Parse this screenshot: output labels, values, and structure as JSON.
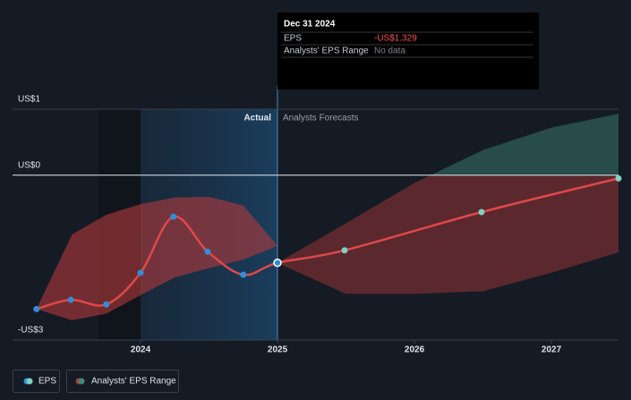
{
  "chart_data": {
    "type": "line",
    "series": [
      {
        "name": "EPS",
        "color": "#e0484a",
        "marker_color": "#2f8fd8",
        "forecast_marker_color": "#7fd3c0",
        "x": [
          2023.24,
          2023.49,
          2023.75,
          2024.0,
          2024.24,
          2024.49,
          2024.75,
          2025.0,
          2025.49,
          2026.49,
          2027.49
        ],
        "values": [
          -2.03,
          -1.89,
          -1.96,
          -1.48,
          -0.63,
          -1.16,
          -1.51,
          -1.329,
          -1.14,
          -0.56,
          -0.05
        ]
      }
    ],
    "forecast_start": 2025.0,
    "range_name": "Analysts' EPS Range",
    "range_colors": {
      "negative": "#b23a3c",
      "positive": "#3e8a7c"
    },
    "ranges": [
      {
        "x": [
          2023.24,
          2023.5,
          2023.75,
          2024.0,
          2024.25,
          2024.5,
          2024.75,
          2025.0
        ],
        "high": [
          -2.03,
          -0.9,
          -0.6,
          -0.44,
          -0.34,
          -0.33,
          -0.46,
          -1.07
        ],
        "low": [
          -2.03,
          -2.2,
          -2.1,
          -1.82,
          -1.55,
          -1.41,
          -1.28,
          -1.07
        ]
      },
      {
        "x": [
          2025.0,
          2025.5,
          2026.0,
          2026.5,
          2027.0,
          2027.49
        ],
        "high": [
          -1.33,
          -0.73,
          -0.12,
          0.38,
          0.72,
          0.93
        ],
        "low": [
          -1.33,
          -1.8,
          -1.8,
          -1.76,
          -1.48,
          -1.17
        ]
      }
    ],
    "xlim": [
      2023.065,
      2027.49
    ],
    "xticks": [
      2024,
      2025,
      2026,
      2027
    ],
    "ylim": [
      -2.5,
      1.0
    ],
    "yticks": [
      {
        "value": 1,
        "label": "US$1"
      },
      {
        "value": 0,
        "label": "US$0"
      },
      {
        "value": -2.5,
        "label": "-US$3"
      }
    ],
    "annotations": {
      "actual": "Actual",
      "forecast": "Analysts Forecasts"
    },
    "tooltip": {
      "title": "Dec 31 2024",
      "rows": [
        {
          "label": "EPS",
          "value": "-US$1.329"
        },
        {
          "label": "Analysts' EPS Range",
          "value": "No data"
        }
      ]
    }
  }
}
